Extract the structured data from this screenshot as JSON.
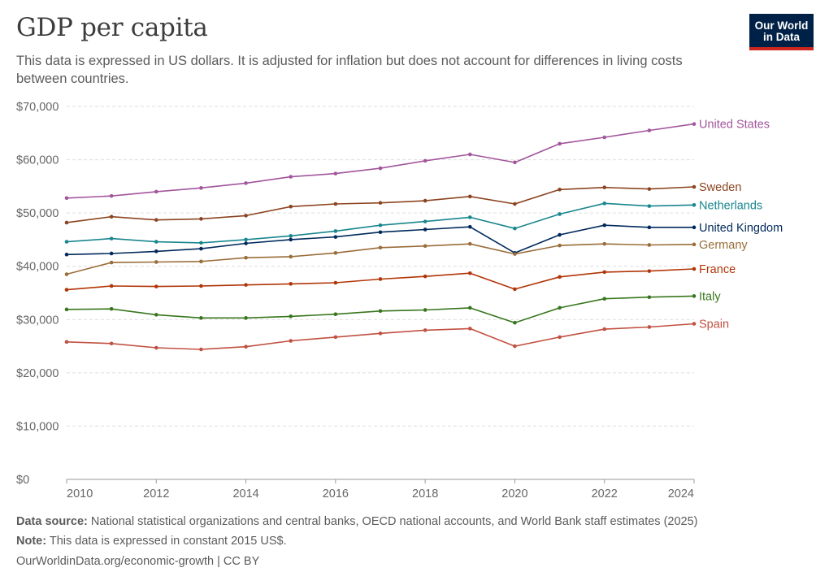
{
  "header": {
    "title": "GDP per capita",
    "subtitle": "This data is expressed in US dollars. It is adjusted for inflation but does not account for differences in living costs between countries.",
    "logo_line1": "Our World",
    "logo_line2": "in Data"
  },
  "footer": {
    "source_label": "Data source:",
    "source_text": "National statistical organizations and central banks, OECD national accounts, and World Bank staff estimates (2025)",
    "note_label": "Note:",
    "note_text": "This data is expressed in constant 2015 US$.",
    "credit": "OurWorldinData.org/economic-growth | CC BY"
  },
  "colors": {
    "logo_bg": "#002147",
    "logo_accent": "#ce261e",
    "grid": "#dddddd"
  },
  "chart_data": {
    "type": "line",
    "x": [
      2010,
      2011,
      2012,
      2013,
      2014,
      2015,
      2016,
      2017,
      2018,
      2019,
      2020,
      2021,
      2022,
      2023,
      2024
    ],
    "xticks": [
      2010,
      2012,
      2014,
      2016,
      2018,
      2020,
      2022,
      2024
    ],
    "xtick_labels": [
      "2010",
      "2012",
      "2014",
      "2016",
      "2018",
      "2020",
      "2022",
      "2024"
    ],
    "yticks": [
      0,
      10000,
      20000,
      30000,
      40000,
      50000,
      60000,
      70000
    ],
    "ytick_labels": [
      "$0",
      "$10,000",
      "$20,000",
      "$30,000",
      "$40,000",
      "$50,000",
      "$60,000",
      "$70,000"
    ],
    "xlim": [
      2010,
      2024
    ],
    "ylim": [
      0,
      70000
    ],
    "grid": "horizontal dashed",
    "legend": "inline labels at line ends (right)",
    "series": [
      {
        "name": "United States",
        "color": "#a2559c",
        "values": [
          52800,
          53200,
          54000,
          54700,
          55600,
          56800,
          57400,
          58400,
          59800,
          61000,
          59500,
          63000,
          64200,
          65500,
          66700
        ]
      },
      {
        "name": "Sweden",
        "color": "#8c4420",
        "values": [
          48200,
          49300,
          48700,
          48900,
          49500,
          51200,
          51700,
          51900,
          52300,
          53100,
          51700,
          54400,
          54800,
          54500,
          54900
        ]
      },
      {
        "name": "Netherlands",
        "color": "#18868d",
        "values": [
          44600,
          45200,
          44600,
          44400,
          45000,
          45700,
          46600,
          47700,
          48400,
          49200,
          47100,
          49800,
          51800,
          51300,
          51500
        ]
      },
      {
        "name": "United Kingdom",
        "color": "#00295b",
        "values": [
          42200,
          42400,
          42800,
          43300,
          44300,
          45000,
          45500,
          46400,
          46900,
          47400,
          42500,
          45900,
          47700,
          47300,
          47300
        ]
      },
      {
        "name": "Germany",
        "color": "#996d39",
        "values": [
          38500,
          40700,
          40800,
          40900,
          41600,
          41800,
          42500,
          43500,
          43800,
          44200,
          42300,
          43900,
          44200,
          44000,
          44100
        ]
      },
      {
        "name": "France",
        "color": "#b13507",
        "values": [
          35600,
          36300,
          36200,
          36300,
          36500,
          36700,
          36900,
          37600,
          38100,
          38700,
          35700,
          38000,
          38900,
          39100,
          39500
        ]
      },
      {
        "name": "Italy",
        "color": "#38761d",
        "values": [
          31900,
          32000,
          30900,
          30300,
          30300,
          30600,
          31000,
          31600,
          31800,
          32200,
          29400,
          32200,
          33900,
          34200,
          34400
        ]
      },
      {
        "name": "Spain",
        "color": "#c15041",
        "values": [
          25800,
          25500,
          24700,
          24400,
          24900,
          26000,
          26700,
          27400,
          28000,
          28300,
          25000,
          26700,
          28200,
          28600,
          29200
        ]
      }
    ]
  }
}
